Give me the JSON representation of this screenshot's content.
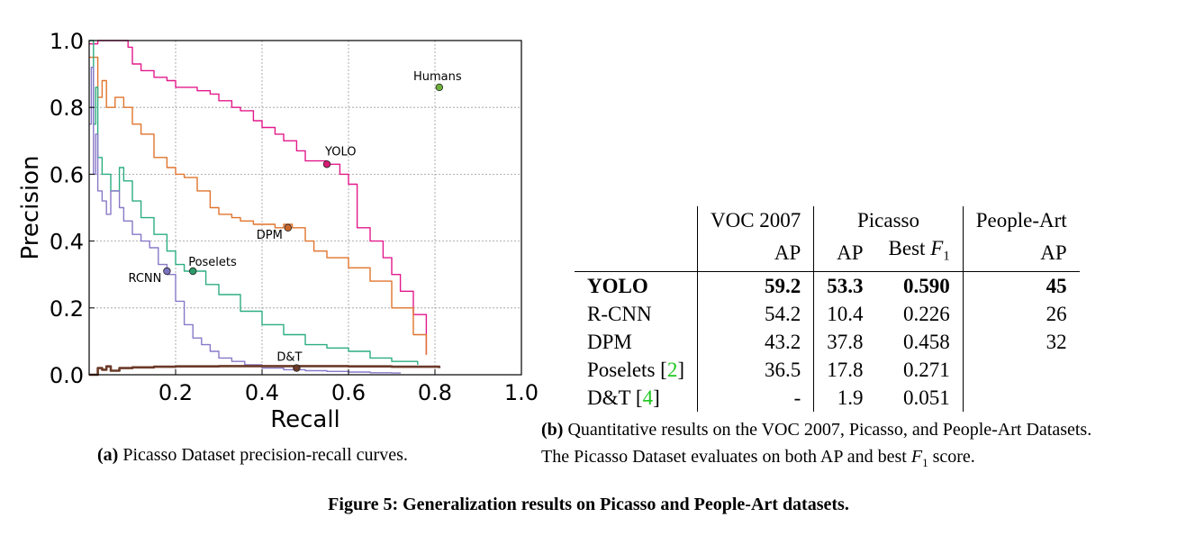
{
  "chart_data": {
    "type": "line",
    "xlabel": "Recall",
    "ylabel": "Precision",
    "xlim": [
      0.0,
      1.0
    ],
    "ylim": [
      0.0,
      1.0
    ],
    "x_ticks": [
      "0.2",
      "0.4",
      "0.6",
      "0.8",
      "1.0"
    ],
    "y_ticks": [
      "0.0",
      "0.2",
      "0.4",
      "0.6",
      "0.8",
      "1.0"
    ],
    "grid": true,
    "series": [
      {
        "name": "YOLO",
        "color": "#e3198b",
        "x": [
          0.0,
          0.02,
          0.05,
          0.08,
          0.09,
          0.1,
          0.12,
          0.15,
          0.18,
          0.2,
          0.22,
          0.25,
          0.28,
          0.3,
          0.33,
          0.35,
          0.38,
          0.4,
          0.43,
          0.45,
          0.48,
          0.5,
          0.52,
          0.55,
          0.58,
          0.6,
          0.62,
          0.62,
          0.65,
          0.68,
          0.7,
          0.72,
          0.75,
          0.78
        ],
        "y": [
          0.99,
          1.0,
          1.0,
          1.0,
          0.98,
          0.93,
          0.91,
          0.89,
          0.88,
          0.86,
          0.86,
          0.85,
          0.84,
          0.82,
          0.8,
          0.79,
          0.76,
          0.74,
          0.72,
          0.7,
          0.67,
          0.64,
          0.64,
          0.63,
          0.6,
          0.57,
          0.52,
          0.44,
          0.4,
          0.35,
          0.3,
          0.25,
          0.18,
          0.06
        ]
      },
      {
        "name": "DPM",
        "color": "#e0742d",
        "x": [
          0.0,
          0.02,
          0.03,
          0.04,
          0.06,
          0.08,
          0.1,
          0.12,
          0.15,
          0.18,
          0.2,
          0.22,
          0.25,
          0.28,
          0.3,
          0.33,
          0.35,
          0.38,
          0.4,
          0.43,
          0.45,
          0.47,
          0.5,
          0.52,
          0.55,
          0.6,
          0.65,
          0.7,
          0.75,
          0.78
        ],
        "y": [
          0.95,
          0.83,
          0.88,
          0.8,
          0.83,
          0.8,
          0.75,
          0.72,
          0.65,
          0.62,
          0.6,
          0.59,
          0.55,
          0.5,
          0.48,
          0.47,
          0.46,
          0.45,
          0.45,
          0.44,
          0.45,
          0.44,
          0.4,
          0.37,
          0.35,
          0.32,
          0.28,
          0.2,
          0.12,
          0.06
        ]
      },
      {
        "name": "Poselets",
        "color": "#2cae80",
        "x": [
          0.0,
          0.01,
          0.015,
          0.02,
          0.03,
          0.05,
          0.07,
          0.08,
          0.1,
          0.12,
          0.15,
          0.18,
          0.2,
          0.22,
          0.24,
          0.27,
          0.3,
          0.35,
          0.4,
          0.45,
          0.5,
          0.55,
          0.6,
          0.65,
          0.7,
          0.76
        ],
        "y": [
          1.0,
          0.75,
          0.86,
          0.65,
          0.6,
          0.55,
          0.62,
          0.58,
          0.52,
          0.47,
          0.42,
          0.37,
          0.33,
          0.31,
          0.31,
          0.27,
          0.24,
          0.19,
          0.15,
          0.12,
          0.09,
          0.08,
          0.07,
          0.05,
          0.04,
          0.03
        ]
      },
      {
        "name": "RCNN",
        "color": "#8878c8",
        "x": [
          0.0,
          0.005,
          0.01,
          0.015,
          0.02,
          0.03,
          0.04,
          0.05,
          0.07,
          0.08,
          0.1,
          0.12,
          0.14,
          0.16,
          0.18,
          0.2,
          0.22,
          0.24,
          0.26,
          0.28,
          0.3,
          0.33,
          0.36,
          0.4,
          0.45,
          0.5,
          0.55,
          0.6,
          0.65,
          0.7,
          0.72
        ],
        "y": [
          0.75,
          0.92,
          0.6,
          0.72,
          0.55,
          0.52,
          0.48,
          0.55,
          0.5,
          0.46,
          0.42,
          0.4,
          0.38,
          0.33,
          0.3,
          0.22,
          0.15,
          0.11,
          0.09,
          0.07,
          0.05,
          0.04,
          0.03,
          0.02,
          0.015,
          0.012,
          0.01,
          0.008,
          0.006,
          0.005,
          0.004
        ]
      },
      {
        "name": "D&T",
        "color": "#6b3a28",
        "x": [
          0.0,
          0.02,
          0.03,
          0.04,
          0.05,
          0.07,
          0.1,
          0.15,
          0.2,
          0.3,
          0.4,
          0.5,
          0.6,
          0.7,
          0.81
        ],
        "y": [
          0.0,
          0.02,
          0.015,
          0.025,
          0.012,
          0.02,
          0.022,
          0.024,
          0.025,
          0.026,
          0.026,
          0.026,
          0.025,
          0.024,
          0.02
        ]
      }
    ],
    "annotations": [
      {
        "label": "YOLO",
        "x": 0.55,
        "y": 0.63,
        "color": "#d81a76"
      },
      {
        "label": "DPM",
        "x": 0.46,
        "y": 0.44,
        "color": "#c8662a"
      },
      {
        "label": "Poselets",
        "x": 0.24,
        "y": 0.31,
        "color": "#2e9b6a"
      },
      {
        "label": "RCNN",
        "x": 0.18,
        "y": 0.31,
        "color": "#7a72bf"
      },
      {
        "label": "D&T",
        "x": 0.48,
        "y": 0.02,
        "color": "#6b3a28"
      },
      {
        "label": "Humans",
        "x": 0.81,
        "y": 0.86,
        "color": "#6db03c"
      }
    ]
  },
  "captions": {
    "a_label": "(a)",
    "a_text": " Picasso Dataset precision-recall curves.",
    "b_label": "(b)",
    "b_line1": " Quantitative results on the VOC 2007, Picasso, and People-Art Datasets.",
    "b_line2_pre": "The Picasso Dataset evaluates on both AP and best ",
    "b_f": "F",
    "b_sub": "1",
    "b_line2_post": " score.",
    "figure": "Figure 5: Generalization results on Picasso and People-Art datasets."
  },
  "table": {
    "h1_voc": "VOC 2007",
    "h1_picasso": "Picasso",
    "h1_people": "People-Art",
    "h2_voc_ap": "AP",
    "h2_pic_ap": "AP",
    "h2_best": "Best ",
    "h2_f": "F",
    "h2_sub": "1",
    "h2_people_ap": "AP",
    "rows": [
      {
        "name": "YOLO",
        "voc": "59.2",
        "pap": "53.3",
        "f1": "0.590",
        "pa": "45"
      },
      {
        "name": "R-CNN",
        "voc": "54.2",
        "pap": "10.4",
        "f1": "0.226",
        "pa": "26"
      },
      {
        "name": "DPM",
        "voc": "43.2",
        "pap": "37.8",
        "f1": "0.458",
        "pa": "32"
      },
      {
        "name": "Poselets ",
        "ref": "2",
        "voc": "36.5",
        "pap": "17.8",
        "f1": "0.271",
        "pa": ""
      },
      {
        "name": "D&T ",
        "ref": "4",
        "voc": "-",
        "pap": "1.9",
        "f1": "0.051",
        "pa": ""
      }
    ]
  }
}
